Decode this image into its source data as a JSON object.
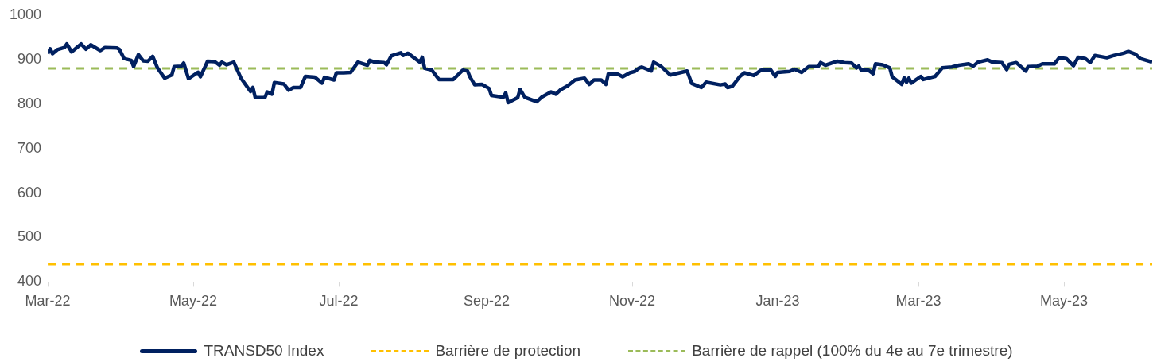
{
  "chart_data": {
    "type": "line",
    "legend": "bottom",
    "xlim": [
      "2022-03-01",
      "2023-06-07"
    ],
    "xticks": [
      {
        "value": "2022-03-01",
        "label": "Mar-22"
      },
      {
        "value": "2022-05-01",
        "label": "May-22"
      },
      {
        "value": "2022-07-01",
        "label": "Jul-22"
      },
      {
        "value": "2022-09-01",
        "label": "Sep-22"
      },
      {
        "value": "2022-11-01",
        "label": "Nov-22"
      },
      {
        "value": "2023-01-01",
        "label": "Jan-23"
      },
      {
        "value": "2023-03-01",
        "label": "Mar-23"
      },
      {
        "value": "2023-05-01",
        "label": "May-23"
      }
    ],
    "ylim": [
      400,
      1000
    ],
    "yticks": [
      400,
      500,
      600,
      700,
      800,
      900,
      1000
    ],
    "x": [
      "2022-03-01",
      "2022-03-02",
      "2022-03-03",
      "2022-03-05",
      "2022-03-08",
      "2022-03-09",
      "2022-03-11",
      "2022-03-15",
      "2022-03-17",
      "2022-03-19",
      "2022-03-23",
      "2022-03-25",
      "2022-03-30",
      "2022-03-31",
      "2022-04-02",
      "2022-04-05",
      "2022-04-06",
      "2022-04-08",
      "2022-04-10",
      "2022-04-12",
      "2022-04-14",
      "2022-04-16",
      "2022-04-19",
      "2022-04-22",
      "2022-04-23",
      "2022-04-26",
      "2022-04-27",
      "2022-04-29",
      "2022-05-03",
      "2022-05-04",
      "2022-05-07",
      "2022-05-10",
      "2022-05-12",
      "2022-05-13",
      "2022-05-15",
      "2022-05-18",
      "2022-05-21",
      "2022-05-25",
      "2022-05-26",
      "2022-05-27",
      "2022-05-31",
      "2022-06-01",
      "2022-06-03",
      "2022-06-04",
      "2022-06-08",
      "2022-06-10",
      "2022-06-12",
      "2022-06-15",
      "2022-06-17",
      "2022-06-21",
      "2022-06-24",
      "2022-06-25",
      "2022-06-29",
      "2022-06-30",
      "2022-07-03",
      "2022-07-06",
      "2022-07-09",
      "2022-07-13",
      "2022-07-14",
      "2022-07-16",
      "2022-07-20",
      "2022-07-21",
      "2022-07-23",
      "2022-07-27",
      "2022-07-28",
      "2022-07-30",
      "2022-08-04",
      "2022-08-05",
      "2022-08-06",
      "2022-08-09",
      "2022-08-12",
      "2022-08-18",
      "2022-08-22",
      "2022-08-24",
      "2022-08-25",
      "2022-08-27",
      "2022-08-30",
      "2022-09-02",
      "2022-09-03",
      "2022-09-08",
      "2022-09-09",
      "2022-09-10",
      "2022-09-14",
      "2022-09-15",
      "2022-09-17",
      "2022-09-22",
      "2022-09-24",
      "2022-09-28",
      "2022-09-30",
      "2022-10-02",
      "2022-10-05",
      "2022-10-08",
      "2022-10-12",
      "2022-10-14",
      "2022-10-16",
      "2022-10-19",
      "2022-10-21",
      "2022-10-22",
      "2022-10-26",
      "2022-10-28",
      "2022-10-31",
      "2022-11-02",
      "2022-11-04",
      "2022-11-05",
      "2022-11-09",
      "2022-11-10",
      "2022-11-13",
      "2022-11-17",
      "2022-11-24",
      "2022-11-26",
      "2022-11-30",
      "2022-12-02",
      "2022-12-08",
      "2022-12-10",
      "2022-12-11",
      "2022-12-13",
      "2022-12-16",
      "2022-12-18",
      "2022-12-22",
      "2022-12-25",
      "2022-12-29",
      "2022-12-31",
      "2023-01-01",
      "2023-01-06",
      "2023-01-08",
      "2023-01-11",
      "2023-01-14",
      "2023-01-18",
      "2023-01-19",
      "2023-01-21",
      "2023-01-26",
      "2023-01-29",
      "2023-02-01",
      "2023-02-03",
      "2023-02-04",
      "2023-02-05",
      "2023-02-08",
      "2023-02-10",
      "2023-02-11",
      "2023-02-14",
      "2023-02-17",
      "2023-02-18",
      "2023-02-22",
      "2023-02-23",
      "2023-02-24",
      "2023-02-25",
      "2023-02-26",
      "2023-03-02",
      "2023-03-03",
      "2023-03-08",
      "2023-03-11",
      "2023-03-15",
      "2023-03-18",
      "2023-03-22",
      "2023-03-24",
      "2023-03-26",
      "2023-03-30",
      "2023-04-01",
      "2023-04-05",
      "2023-04-07",
      "2023-04-08",
      "2023-04-11",
      "2023-04-15",
      "2023-04-16",
      "2023-04-20",
      "2023-04-22",
      "2023-04-27",
      "2023-04-29",
      "2023-05-02",
      "2023-05-05",
      "2023-05-07",
      "2023-05-10",
      "2023-05-12",
      "2023-05-14",
      "2023-05-17",
      "2023-05-19",
      "2023-05-22",
      "2023-05-26",
      "2023-05-28",
      "2023-05-31",
      "2023-06-02",
      "2023-06-07"
    ],
    "series": [
      {
        "name": "TRANSD50 Index",
        "color": "#002060",
        "values": [
          913,
          924,
          913,
          922,
          927,
          935,
          917,
          935,
          923,
          933,
          920,
          927,
          926,
          923,
          902,
          898,
          884,
          911,
          897,
          896,
          907,
          881,
          858,
          865,
          884,
          885,
          892,
          857,
          871,
          861,
          896,
          895,
          887,
          894,
          888,
          894,
          858,
          828,
          837,
          814,
          814,
          827,
          822,
          848,
          845,
          831,
          837,
          837,
          862,
          860,
          847,
          860,
          854,
          870,
          870,
          871,
          894,
          887,
          898,
          894,
          893,
          888,
          908,
          915,
          909,
          914,
          894,
          905,
          880,
          876,
          855,
          855,
          876,
          874,
          861,
          843,
          844,
          835,
          819,
          815,
          825,
          803,
          814,
          833,
          815,
          805,
          815,
          827,
          822,
          832,
          841,
          854,
          858,
          844,
          854,
          854,
          844,
          868,
          867,
          861,
          870,
          873,
          881,
          883,
          874,
          894,
          885,
          865,
          874,
          846,
          837,
          849,
          843,
          845,
          837,
          840,
          861,
          870,
          864,
          876,
          877,
          862,
          871,
          873,
          878,
          871,
          884,
          884,
          893,
          887,
          896,
          893,
          892,
          881,
          885,
          876,
          876,
          868,
          890,
          888,
          881,
          861,
          844,
          859,
          849,
          858,
          847,
          862,
          855,
          862,
          881,
          883,
          887,
          890,
          885,
          894,
          899,
          894,
          893,
          877,
          889,
          893,
          874,
          884,
          885,
          890,
          890,
          904,
          902,
          886,
          905,
          902,
          893,
          909,
          906,
          904,
          909,
          914,
          918,
          912,
          902,
          894
        ]
      }
    ],
    "ref_lines": [
      {
        "axis": "y",
        "value": 440,
        "label": "Barrière de protection",
        "color": "#ffc000",
        "line_style": "dashed"
      },
      {
        "axis": "y",
        "value": 880,
        "label": "Barrière de rappel (100% du 4e au 7e trimestre)",
        "color": "#9bbb59",
        "line_style": "dashed"
      }
    ]
  }
}
